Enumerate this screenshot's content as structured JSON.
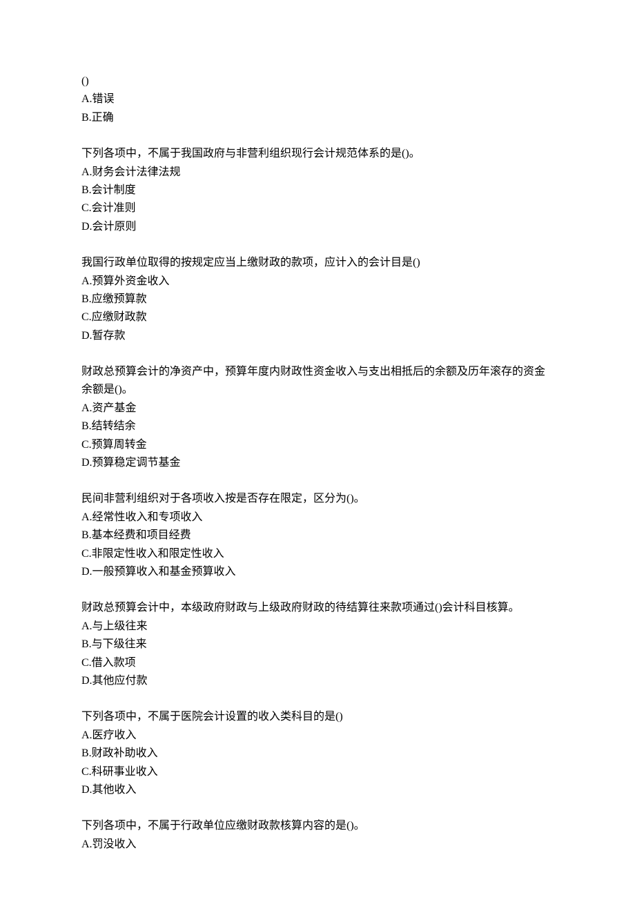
{
  "questions": [
    {
      "text": "()",
      "options": [
        "A.错误",
        "B.正确"
      ]
    },
    {
      "text": "下列各项中，不属于我国政府与非营利组织现行会计规范体系的是()。",
      "options": [
        "A.财务会计法律法规",
        "B.会计制度",
        "C.会计准则",
        "D.会计原则"
      ]
    },
    {
      "text": "我国行政单位取得的按规定应当上缴财政的款项，应计入的会计目是()",
      "options": [
        "A.预算外资金收入",
        "B.应缴预算款",
        "C.应缴财政款",
        "D.暂存款"
      ]
    },
    {
      "text": "财政总预算会计的净资产中，预算年度内财政性资金收入与支出相抵后的余额及历年滚存的资金余额是()。",
      "options": [
        "A.资产基金",
        "B.结转结余",
        "C.预算周转金",
        "D.预算稳定调节基金"
      ]
    },
    {
      "text": "民间非营利组织对于各项收入按是否存在限定，区分为()。",
      "options": [
        "A.经常性收入和专项收入",
        "B.基本经费和项目经费",
        "C.非限定性收入和限定性收入",
        "D.一般预算收入和基金预算收入"
      ]
    },
    {
      "text": "财政总预算会计中，本级政府财政与上级政府财政的待结算往来款项通过()会计科目核算。",
      "options": [
        "A.与上级往来",
        "B.与下级往来",
        "C.借入款项",
        "D.其他应付款"
      ]
    },
    {
      "text": "下列各项中，不属于医院会计设置的收入类科目的是()",
      "options": [
        "A.医疗收入",
        "B.财政补助收入",
        "C.科研事业收入",
        "D.其他收入"
      ]
    },
    {
      "text": "下列各项中，不属于行政单位应缴财政款核算内容的是()。",
      "options": [
        "A.罚没收入"
      ]
    }
  ]
}
